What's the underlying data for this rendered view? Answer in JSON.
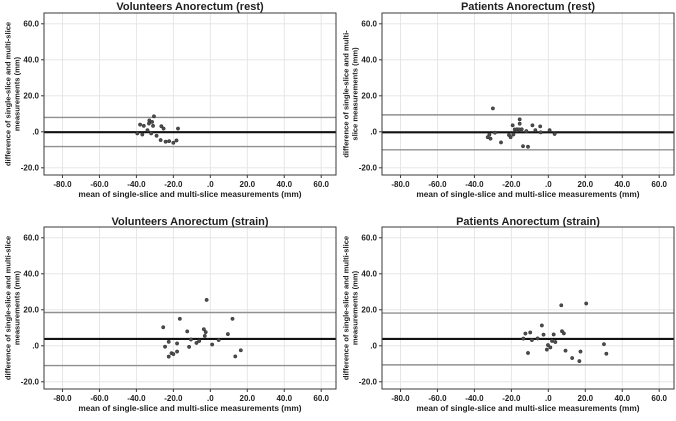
{
  "figure": {
    "background": "#ffffff"
  },
  "styles": {
    "dot_fill": "#4d4d4d",
    "dot_stroke": "#2e2e2e",
    "mean_line_color": "#111111",
    "loa_line_color": "#909090",
    "grid_color": "#e4e4e4",
    "frame_color": "#3a3a3a",
    "tick_color": "#3a3a3a"
  },
  "axes": {
    "x": {
      "min": -90,
      "max": 68,
      "tick_values": [
        -80,
        -60,
        -40,
        -20,
        0,
        20,
        40,
        60
      ],
      "tick_labels": [
        "-80.0",
        "-60.0",
        "-40.0",
        "-20.0",
        ".0",
        "20.0",
        "40.0",
        "60.0"
      ]
    },
    "y": {
      "min": -24,
      "max": 66,
      "tick_values": [
        -20,
        0,
        20,
        40,
        60
      ],
      "tick_labels": [
        "-20.0",
        ".0",
        "20.0",
        "40.0",
        "60.0"
      ]
    }
  },
  "chart_data": [
    {
      "type": "scatter",
      "title": "Volunteers Anorectum (rest)",
      "xlabel": "mean of single-slice and multi-slice measurements (mm)",
      "ylabel_line1": "difference of single-slice and multi-slice",
      "ylabel_line2": "measurements (mm)",
      "xlim": [
        -90,
        68
      ],
      "ylim": [
        -24,
        66
      ],
      "grid": true,
      "mean_line": -0.2,
      "loa_upper": 8.0,
      "loa_lower": -8.2,
      "points": [
        [
          -30.5,
          8.6
        ],
        [
          -33,
          6.3
        ],
        [
          -31.5,
          5.5
        ],
        [
          -38,
          4.0
        ],
        [
          -36,
          3.3
        ],
        [
          -33.2,
          4.6
        ],
        [
          -31,
          3.3
        ],
        [
          -34,
          0.9
        ],
        [
          -26.5,
          3.1
        ],
        [
          -25.3,
          1.8
        ],
        [
          -39.5,
          -0.9
        ],
        [
          -36.8,
          -1.5
        ],
        [
          -32,
          -0.9
        ],
        [
          -29.1,
          -2.2
        ],
        [
          -26.9,
          -4.6
        ],
        [
          -24.2,
          -5.5
        ],
        [
          -22.3,
          -5.2
        ],
        [
          -20,
          -6.1
        ],
        [
          -18.3,
          -4.8
        ],
        [
          -17.5,
          1.8
        ]
      ]
    },
    {
      "type": "scatter",
      "title": "Patients Anorectum (rest)",
      "xlabel": "mean of single-slice and multi-slice measurements (mm)",
      "ylabel_line1": "difference of single-slice and multi-",
      "ylabel_line2": "slice measurements (mm)",
      "xlim": [
        -90,
        68
      ],
      "ylim": [
        -24,
        66
      ],
      "grid": true,
      "mean_line": -0.3,
      "loa_upper": 9.4,
      "loa_lower": -10.0,
      "points": [
        [
          -30,
          13
        ],
        [
          -15.5,
          6.9
        ],
        [
          -15.5,
          4.5
        ],
        [
          -19.3,
          3.6
        ],
        [
          -8.6,
          3.6
        ],
        [
          -4.4,
          3.0
        ],
        [
          -18.2,
          1.3
        ],
        [
          -16.9,
          1.4
        ],
        [
          -15.8,
          1.3
        ],
        [
          -14.4,
          1.4
        ],
        [
          -11.9,
          0.4
        ],
        [
          -7.0,
          0.9
        ],
        [
          0.7,
          0.9
        ],
        [
          -4.1,
          -0.3
        ],
        [
          3.4,
          -1.2
        ],
        [
          -28.9,
          -0.5
        ],
        [
          -31.9,
          -1.6
        ],
        [
          -32.8,
          -3.0
        ],
        [
          -31.3,
          -3.8
        ],
        [
          -21.3,
          -1.8
        ],
        [
          -20.4,
          -3.0
        ],
        [
          -18.9,
          -1.5
        ],
        [
          -25.6,
          -5.9
        ],
        [
          -13.7,
          -8.0
        ],
        [
          -11.0,
          -8.3
        ]
      ]
    },
    {
      "type": "scatter",
      "title": "Volunteers Anorectum (strain)",
      "xlabel": "mean of single-slice and multi-slice measurements (mm)",
      "ylabel_line1": "difference of single-slice and multi-slice",
      "ylabel_line2": "measurements (mm)",
      "xlim": [
        -90,
        68
      ],
      "ylim": [
        -24,
        66
      ],
      "grid": true,
      "mean_line": 3.8,
      "loa_upper": 18.5,
      "loa_lower": -11.0,
      "points": [
        [
          -2,
          25.5
        ],
        [
          -16.5,
          15
        ],
        [
          12,
          15
        ],
        [
          -25.5,
          10.3
        ],
        [
          -3.5,
          9.2
        ],
        [
          -2.5,
          7.6
        ],
        [
          -12.5,
          8.0
        ],
        [
          9.5,
          6.5
        ],
        [
          -3,
          5.5
        ],
        [
          -10.5,
          3.5
        ],
        [
          -6,
          2.7
        ],
        [
          4.5,
          3.2
        ],
        [
          -22.5,
          2.2
        ],
        [
          -18,
          1.3
        ],
        [
          -7.5,
          1.6
        ],
        [
          1,
          0.7
        ],
        [
          -24.5,
          -0.5
        ],
        [
          -11.5,
          -0.6
        ],
        [
          -18,
          -3.2
        ],
        [
          -21,
          -4.1
        ],
        [
          -20,
          -4.6
        ],
        [
          -22.5,
          -6.0
        ],
        [
          13.5,
          -5.9
        ],
        [
          16.5,
          -2.5
        ]
      ]
    },
    {
      "type": "scatter",
      "title": "Patients Anorectum (strain)",
      "xlabel": "mean of single-slice and multi-slice measurements (mm)",
      "ylabel_line1": "difference of single-slice and multi-slice",
      "ylabel_line2": "measurements (mm)",
      "xlim": [
        -90,
        68
      ],
      "ylim": [
        -24,
        66
      ],
      "grid": true,
      "mean_line": 3.8,
      "loa_upper": 18.2,
      "loa_lower": -10.6,
      "points": [
        [
          7,
          22.5
        ],
        [
          20.5,
          23.5
        ],
        [
          -3.5,
          11.3
        ],
        [
          -9.8,
          7.4
        ],
        [
          -12.4,
          6.8
        ],
        [
          -13.5,
          4.0
        ],
        [
          -8.9,
          3.2
        ],
        [
          -5.8,
          4.1
        ],
        [
          -2.6,
          6.2
        ],
        [
          2.9,
          6.3
        ],
        [
          7.4,
          8.1
        ],
        [
          8.4,
          6.9
        ],
        [
          2.0,
          2.7
        ],
        [
          3.8,
          2.1
        ],
        [
          -0.2,
          0.4
        ],
        [
          1.1,
          -0.9
        ],
        [
          -0.8,
          -2.1
        ],
        [
          -11.0,
          -4.0
        ],
        [
          9.3,
          -2.7
        ],
        [
          12.9,
          -6.8
        ],
        [
          17.4,
          -3.2
        ],
        [
          16.8,
          -8.5
        ],
        [
          30.1,
          0.9
        ],
        [
          31.4,
          -4.4
        ]
      ]
    }
  ]
}
